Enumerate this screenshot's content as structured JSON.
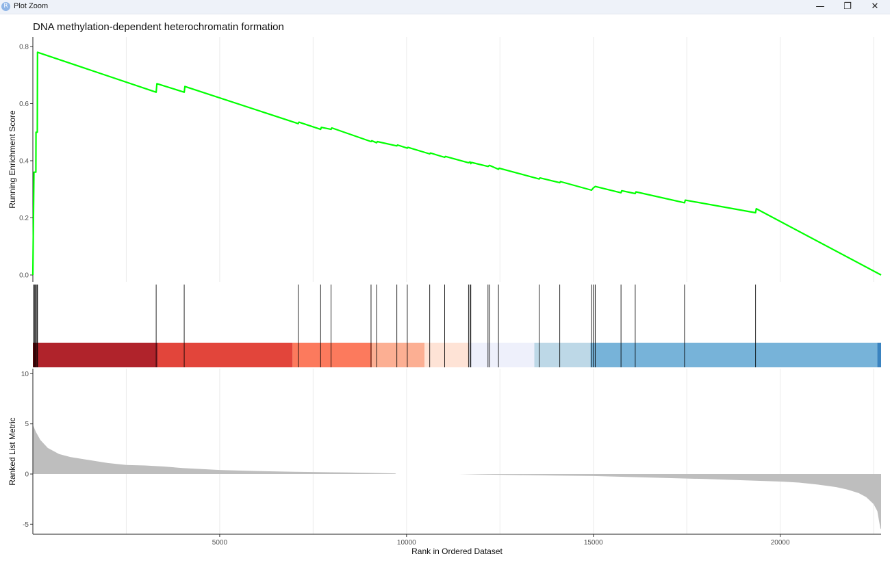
{
  "window": {
    "title": "Plot Zoom",
    "app_icon": "R",
    "minimize_glyph": "—",
    "restore_glyph": "❐",
    "close_glyph": "✕"
  },
  "chart_data": {
    "type": "line",
    "title": "DNA methylation-dependent heterochromatin formation",
    "xlabel": "Rank in Ordered Dataset",
    "x_ticks": [
      5000,
      10000,
      15000,
      20000
    ],
    "xlim": [
      0,
      22700
    ],
    "panels": [
      {
        "name": "running_enrichment_score",
        "ylabel": "Running Enrichment Score",
        "ylim": [
          0,
          0.8
        ],
        "y_ticks": [
          0.0,
          0.2,
          0.4,
          0.6,
          0.8
        ],
        "line_color": "#00ff00",
        "points": [
          [
            0,
            0
          ],
          [
            30,
            0.36
          ],
          [
            80,
            0.36
          ],
          [
            85,
            0.5
          ],
          [
            120,
            0.5
          ],
          [
            125,
            0.78
          ],
          [
            3300,
            0.64
          ],
          [
            3320,
            0.67
          ],
          [
            4050,
            0.64
          ],
          [
            4070,
            0.66
          ],
          [
            7100,
            0.53
          ],
          [
            7120,
            0.535
          ],
          [
            7700,
            0.51
          ],
          [
            7720,
            0.517
          ],
          [
            7980,
            0.51
          ],
          [
            8000,
            0.515
          ],
          [
            9050,
            0.467
          ],
          [
            9070,
            0.47
          ],
          [
            9200,
            0.463
          ],
          [
            9220,
            0.467
          ],
          [
            9740,
            0.452
          ],
          [
            9760,
            0.455
          ],
          [
            10020,
            0.444
          ],
          [
            10040,
            0.447
          ],
          [
            10620,
            0.424
          ],
          [
            10640,
            0.427
          ],
          [
            11020,
            0.412
          ],
          [
            11040,
            0.415
          ],
          [
            11660,
            0.393
          ],
          [
            11700,
            0.396
          ],
          [
            11720,
            0.39
          ],
          [
            11740,
            0.394
          ],
          [
            12180,
            0.38
          ],
          [
            12220,
            0.384
          ],
          [
            12460,
            0.37
          ],
          [
            12480,
            0.374
          ],
          [
            13550,
            0.336
          ],
          [
            13570,
            0.34
          ],
          [
            14100,
            0.323
          ],
          [
            14120,
            0.327
          ],
          [
            14950,
            0.297
          ],
          [
            15000,
            0.305
          ],
          [
            15050,
            0.31
          ],
          [
            15740,
            0.288
          ],
          [
            15760,
            0.295
          ],
          [
            16120,
            0.285
          ],
          [
            16140,
            0.291
          ],
          [
            17440,
            0.253
          ],
          [
            17460,
            0.262
          ],
          [
            19340,
            0.218
          ],
          [
            19360,
            0.232
          ],
          [
            22700,
            0.0
          ]
        ]
      },
      {
        "name": "gene_hits",
        "hit_ranks": [
          20,
          40,
          60,
          85,
          110,
          125,
          3300,
          4050,
          7100,
          7700,
          7980,
          9050,
          9200,
          9740,
          10020,
          10620,
          11020,
          11660,
          11700,
          11720,
          12180,
          12220,
          12460,
          13550,
          14100,
          14950,
          15000,
          15050,
          15740,
          16120,
          17440,
          19340
        ]
      },
      {
        "name": "ranked_list_metric",
        "ylabel": "Ranked List Metric",
        "ylim": [
          -6,
          10.5
        ],
        "y_ticks": [
          -5,
          0,
          5,
          10
        ],
        "fill_color": "#bebebe",
        "points": [
          [
            0,
            4.9
          ],
          [
            80,
            4.2
          ],
          [
            200,
            3.4
          ],
          [
            400,
            2.6
          ],
          [
            700,
            2.0
          ],
          [
            1000,
            1.7
          ],
          [
            1500,
            1.4
          ],
          [
            2000,
            1.1
          ],
          [
            2500,
            0.9
          ],
          [
            3000,
            0.85
          ],
          [
            3500,
            0.75
          ],
          [
            4000,
            0.6
          ],
          [
            5000,
            0.4
          ],
          [
            6000,
            0.3
          ],
          [
            7000,
            0.22
          ],
          [
            8000,
            0.17
          ],
          [
            9000,
            0.12
          ],
          [
            9700,
            0.06
          ],
          [
            9720,
            0.0
          ],
          [
            10550,
            0.0
          ],
          [
            11400,
            0.0
          ],
          [
            12000,
            -0.05
          ],
          [
            13000,
            -0.1
          ],
          [
            14000,
            -0.15
          ],
          [
            15000,
            -0.2
          ],
          [
            16000,
            -0.3
          ],
          [
            17000,
            -0.4
          ],
          [
            18000,
            -0.5
          ],
          [
            19000,
            -0.62
          ],
          [
            20000,
            -0.75
          ],
          [
            20500,
            -0.85
          ],
          [
            21000,
            -1.05
          ],
          [
            21500,
            -1.3
          ],
          [
            21800,
            -1.55
          ],
          [
            22100,
            -1.9
          ],
          [
            22300,
            -2.3
          ],
          [
            22500,
            -3.0
          ],
          [
            22600,
            -3.7
          ],
          [
            22680,
            -5.4
          ],
          [
            22700,
            -5.5
          ]
        ]
      }
    ],
    "heat_band": [
      {
        "x0": 0,
        "x1": 100,
        "color": "#a50f15"
      },
      {
        "x0": 100,
        "x1": 3350,
        "color": "#b0232b"
      },
      {
        "x0": 3350,
        "x1": 6950,
        "color": "#e2453b"
      },
      {
        "x0": 6950,
        "x1": 9070,
        "color": "#fc7a5d"
      },
      {
        "x0": 9070,
        "x1": 10480,
        "color": "#fcaf93"
      },
      {
        "x0": 10480,
        "x1": 11670,
        "color": "#fee3d6"
      },
      {
        "x0": 11670,
        "x1": 13420,
        "color": "#eef0fb"
      },
      {
        "x0": 13420,
        "x1": 14920,
        "color": "#bdd8e7"
      },
      {
        "x0": 14920,
        "x1": 22600,
        "color": "#77b3d9"
      },
      {
        "x0": 22600,
        "x1": 22700,
        "color": "#3a83c0"
      }
    ]
  }
}
